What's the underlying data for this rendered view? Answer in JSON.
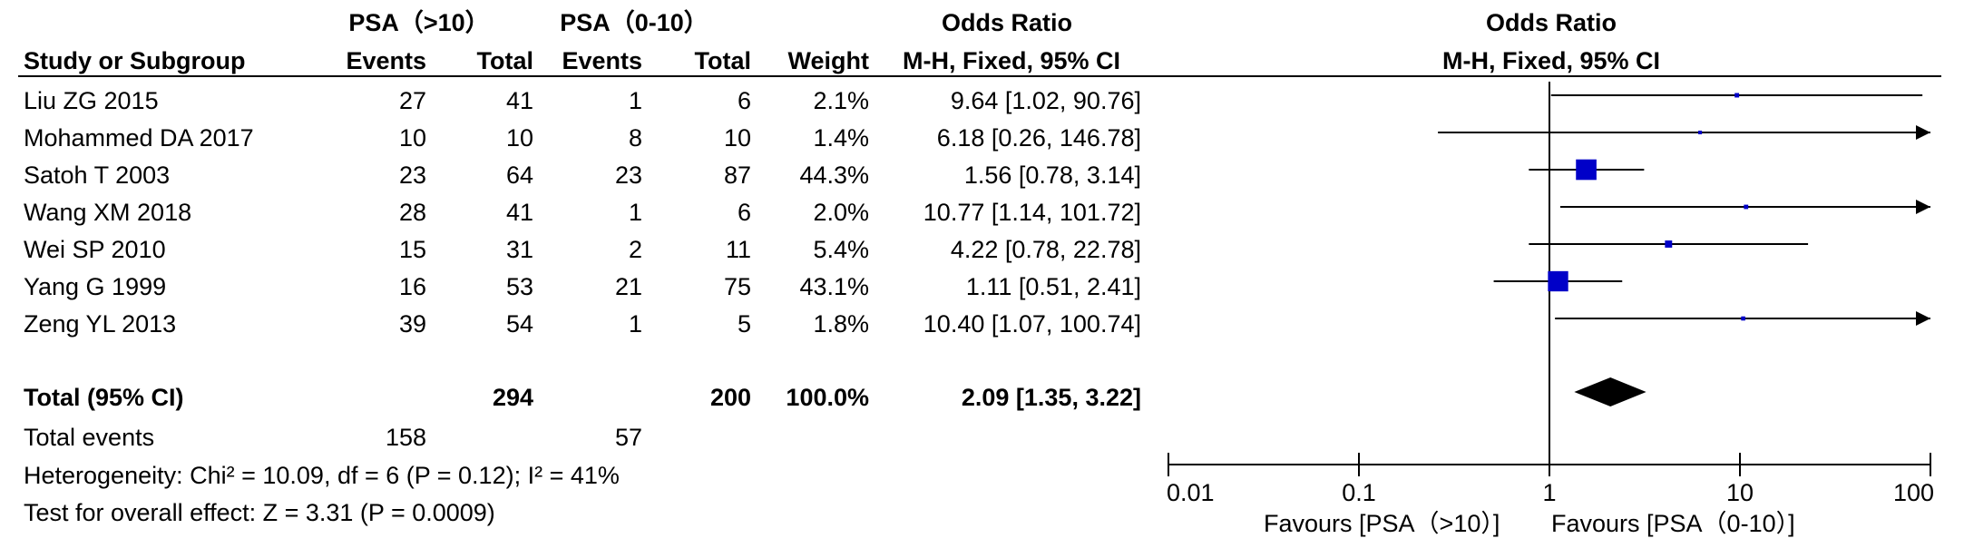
{
  "headers": {
    "group1": "PSA（>10）",
    "group2": "PSA（0-10）",
    "odds_ratio_table": "Odds Ratio",
    "odds_ratio_plot": "Odds Ratio",
    "study": "Study or Subgroup",
    "events1": "Events",
    "total1": "Total",
    "events2": "Events",
    "total2": "Total",
    "weight": "Weight",
    "method_table": "M-H, Fixed, 95% CI",
    "method_plot": "M-H, Fixed, 95% CI"
  },
  "studies": [
    {
      "name": "Liu ZG 2015",
      "e1": "27",
      "t1": "41",
      "e2": "1",
      "t2": "6",
      "weight": "2.1%",
      "ci": "9.64 [1.02, 90.76]"
    },
    {
      "name": "Mohammed DA 2017",
      "e1": "10",
      "t1": "10",
      "e2": "8",
      "t2": "10",
      "weight": "1.4%",
      "ci": "6.18 [0.26, 146.78]"
    },
    {
      "name": "Satoh T 2003",
      "e1": "23",
      "t1": "64",
      "e2": "23",
      "t2": "87",
      "weight": "44.3%",
      "ci": "1.56 [0.78, 3.14]"
    },
    {
      "name": "Wang XM 2018",
      "e1": "28",
      "t1": "41",
      "e2": "1",
      "t2": "6",
      "weight": "2.0%",
      "ci": "10.77 [1.14, 101.72]"
    },
    {
      "name": "Wei SP 2010",
      "e1": "15",
      "t1": "31",
      "e2": "2",
      "t2": "11",
      "weight": "5.4%",
      "ci": "4.22 [0.78, 22.78]"
    },
    {
      "name": "Yang G 1999",
      "e1": "16",
      "t1": "53",
      "e2": "21",
      "t2": "75",
      "weight": "43.1%",
      "ci": "1.11 [0.51, 2.41]"
    },
    {
      "name": "Zeng YL 2013",
      "e1": "39",
      "t1": "54",
      "e2": "1",
      "t2": "5",
      "weight": "1.8%",
      "ci": "10.40 [1.07, 100.74]"
    }
  ],
  "total": {
    "label": "Total (95% CI)",
    "t1": "294",
    "t2": "200",
    "weight": "100.0%",
    "ci": "2.09 [1.35, 3.22]"
  },
  "total_events": {
    "label": "Total events",
    "e1": "158",
    "e2": "57"
  },
  "heterogeneity": "Heterogeneity: Chi² = 10.09, df = 6 (P = 0.12); I² = 41%",
  "overall_effect": "Test for overall effect: Z = 3.31 (P = 0.0009)",
  "favours_left": "Favours [PSA（>10）]",
  "favours_right": "Favours [PSA（0-10）]",
  "chart_data": {
    "type": "scatter",
    "scale": "log",
    "xlim": [
      0.01,
      100
    ],
    "ticks": [
      0.01,
      0.1,
      1,
      10,
      100
    ],
    "tick_labels": [
      "0.01",
      "0.1",
      "1",
      "10",
      "100"
    ],
    "reference_line": 1,
    "marker_color": "#0000c8",
    "points": [
      {
        "or": 9.64,
        "lo": 1.02,
        "hi": 90.76,
        "weight": 2.1
      },
      {
        "or": 6.18,
        "lo": 0.26,
        "hi": 146.78,
        "weight": 1.4
      },
      {
        "or": 1.56,
        "lo": 0.78,
        "hi": 3.14,
        "weight": 44.3
      },
      {
        "or": 10.77,
        "lo": 1.14,
        "hi": 101.72,
        "weight": 2.0
      },
      {
        "or": 4.22,
        "lo": 0.78,
        "hi": 22.78,
        "weight": 5.4
      },
      {
        "or": 1.11,
        "lo": 0.51,
        "hi": 2.41,
        "weight": 43.1
      },
      {
        "or": 10.4,
        "lo": 1.07,
        "hi": 100.74,
        "weight": 1.8
      }
    ],
    "pooled": {
      "or": 2.09,
      "lo": 1.35,
      "hi": 3.22
    }
  }
}
